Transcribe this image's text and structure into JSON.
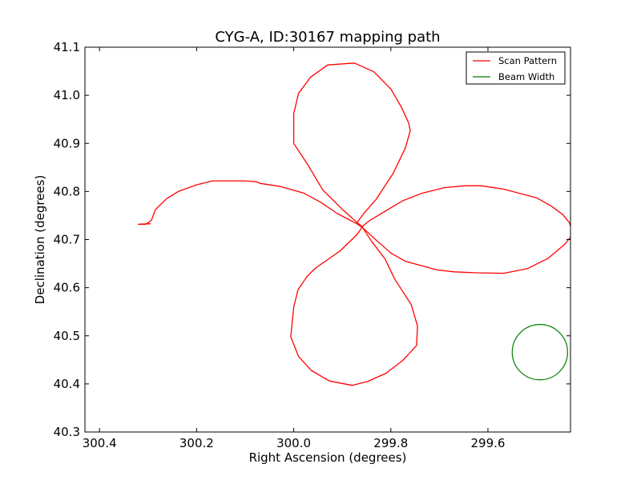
{
  "chart_data": {
    "type": "line",
    "title": "CYG-A, ID:30167 mapping path",
    "xlabel": "Right Ascension (degrees)",
    "ylabel": "Declination (degrees)",
    "xlim": [
      300.43,
      299.43
    ],
    "ylim": [
      40.3,
      41.1
    ],
    "x_inverted": true,
    "xticks": [
      "300.4",
      "300.2",
      "300.0",
      "299.8",
      "299.6"
    ],
    "xtick_values": [
      300.4,
      300.2,
      300.0,
      299.8,
      299.6
    ],
    "yticks": [
      "40.3",
      "40.4",
      "40.5",
      "40.6",
      "40.7",
      "40.8",
      "40.9",
      "41.0",
      "41.1"
    ],
    "ytick_values": [
      40.3,
      40.4,
      40.5,
      40.6,
      40.7,
      40.8,
      40.9,
      41.0,
      41.1
    ],
    "grid": false,
    "legend_position": "top-right",
    "series": [
      {
        "name": "Scan Pattern",
        "color": "#ff0000",
        "points": [
          [
            300.295,
            40.733
          ],
          [
            300.32,
            40.732
          ],
          [
            300.305,
            40.732
          ],
          [
            300.293,
            40.74
          ],
          [
            300.285,
            40.762
          ],
          [
            300.262,
            40.785
          ],
          [
            300.238,
            40.8
          ],
          [
            300.2,
            40.814
          ],
          [
            300.167,
            40.822
          ],
          [
            300.1,
            40.822
          ],
          [
            300.075,
            40.82
          ],
          [
            300.07,
            40.817
          ],
          [
            300.03,
            40.811
          ],
          [
            299.98,
            40.797
          ],
          [
            299.945,
            40.778
          ],
          [
            299.91,
            40.754
          ],
          [
            299.87,
            40.733
          ],
          [
            299.86,
            40.726
          ],
          [
            299.855,
            40.722
          ],
          [
            299.828,
            40.697
          ],
          [
            299.8,
            40.672
          ],
          [
            299.77,
            40.655
          ],
          [
            299.705,
            40.637
          ],
          [
            299.67,
            40.633
          ],
          [
            299.623,
            40.631
          ],
          [
            299.567,
            40.63
          ],
          [
            299.518,
            40.64
          ],
          [
            299.476,
            40.661
          ],
          [
            299.442,
            40.69
          ],
          [
            299.43,
            40.705
          ],
          [
            299.428,
            40.72
          ],
          [
            299.432,
            40.735
          ],
          [
            299.446,
            40.752
          ],
          [
            299.47,
            40.77
          ],
          [
            299.5,
            40.787
          ],
          [
            299.568,
            40.805
          ],
          [
            299.614,
            40.812
          ],
          [
            299.647,
            40.812
          ],
          [
            299.69,
            40.808
          ],
          [
            299.737,
            40.796
          ],
          [
            299.775,
            40.781
          ],
          [
            299.81,
            40.76
          ],
          [
            299.843,
            40.74
          ],
          [
            299.856,
            40.73
          ],
          [
            299.87,
            40.71
          ],
          [
            299.905,
            40.676
          ],
          [
            299.955,
            40.641
          ],
          [
            299.972,
            40.624
          ],
          [
            299.991,
            40.596
          ],
          [
            300.0,
            40.56
          ],
          [
            300.006,
            40.498
          ],
          [
            299.99,
            40.457
          ],
          [
            299.964,
            40.428
          ],
          [
            299.926,
            40.406
          ],
          [
            299.88,
            40.397
          ],
          [
            299.848,
            40.405
          ],
          [
            299.81,
            40.422
          ],
          [
            299.775,
            40.449
          ],
          [
            299.747,
            40.48
          ],
          [
            299.745,
            40.52
          ],
          [
            299.758,
            40.565
          ],
          [
            299.792,
            40.618
          ],
          [
            299.812,
            40.66
          ],
          [
            299.84,
            40.697
          ],
          [
            299.86,
            40.728
          ],
          [
            299.872,
            40.738
          ],
          [
            299.9,
            40.763
          ],
          [
            299.94,
            40.803
          ],
          [
            299.97,
            40.854
          ],
          [
            300.0,
            40.9
          ],
          [
            300.0,
            40.962
          ],
          [
            299.99,
            41.004
          ],
          [
            299.965,
            41.038
          ],
          [
            299.93,
            41.063
          ],
          [
            299.875,
            41.067
          ],
          [
            299.835,
            41.049
          ],
          [
            299.8,
            41.013
          ],
          [
            299.778,
            40.975
          ],
          [
            299.763,
            40.942
          ],
          [
            299.76,
            40.926
          ],
          [
            299.77,
            40.891
          ],
          [
            299.795,
            40.838
          ],
          [
            299.83,
            40.784
          ],
          [
            299.855,
            40.755
          ],
          [
            299.87,
            40.735
          ]
        ]
      },
      {
        "name": "Beam Width",
        "color": "#008000",
        "shape": "circle",
        "center": [
          299.493,
          40.466
        ],
        "radius_deg": 0.057
      }
    ]
  }
}
